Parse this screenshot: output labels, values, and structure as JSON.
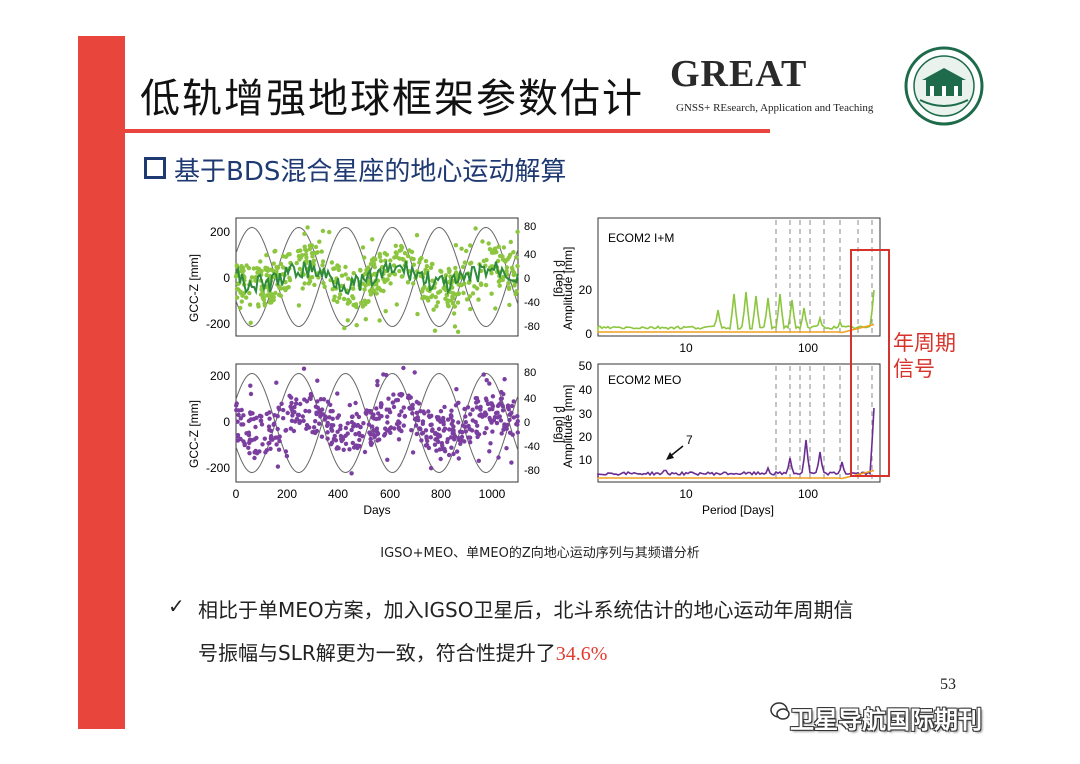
{
  "slide": {
    "title": "低轨增强地球框架参数估计",
    "subtitle": "基于BDS混合星座的地心运动解算",
    "logo_text": "GREAT",
    "logo_subtext": "GNSS+ REsearch, Application and Teaching",
    "page_number": "53",
    "watermark": "卫星导航国际期刊"
  },
  "figure": {
    "caption": "IGSO+MEO、单MEO的Z向地心运动序列与其频谱分析",
    "annotation_line1": "年周期",
    "annotation_line2": "信号",
    "arrow_label": "7"
  },
  "bullet": {
    "check": "✓",
    "line1": "相比于单MEO方案，加入IGSO卫星后，北斗系统估计的地心运动年周期信",
    "line2_prefix": "号振幅与SLR解更为一致，符合性提升了",
    "line2_value": "34.6%"
  },
  "chart_data": [
    {
      "type": "scatter",
      "panel": "top-left",
      "xlabel": "",
      "ylabel": "GCC-Z [mm]",
      "y2label": "β [deg]",
      "xlim": [
        0,
        1100
      ],
      "ylim": [
        -250,
        250
      ],
      "yticks": [
        -200,
        0,
        200
      ],
      "y2ticks": [
        -80,
        -40,
        0,
        40,
        80
      ],
      "colors": {
        "points": "#8cc63f",
        "line": "#2e8b3c",
        "beta": "#555555"
      }
    },
    {
      "type": "line",
      "panel": "top-right",
      "label": "ECOM2 I+M",
      "ylabel": "Amplitude [mm]",
      "xscale": "log",
      "xticks": [
        10,
        100
      ],
      "ylim": [
        0,
        30
      ],
      "yticks": [
        0,
        20
      ],
      "colors": {
        "series": "#8cc63f",
        "ref": "#f0a020"
      }
    },
    {
      "type": "scatter",
      "panel": "bottom-left",
      "xlabel": "Days",
      "ylabel": "GCC-Z [mm]",
      "y2label": "β [deg]",
      "xlim": [
        0,
        1100
      ],
      "xticks": [
        0,
        200,
        400,
        600,
        800,
        1000
      ],
      "ylim": [
        -250,
        250
      ],
      "yticks": [
        -200,
        0,
        200
      ],
      "y2ticks": [
        -80,
        -40,
        0,
        40,
        80
      ],
      "colors": {
        "points": "#7b3fa0",
        "beta": "#555555"
      }
    },
    {
      "type": "line",
      "panel": "bottom-right",
      "label": "ECOM2 MEO",
      "xlabel": "Period [Days]",
      "ylabel": "Amplitude [mm]",
      "xscale": "log",
      "xticks": [
        10,
        100
      ],
      "ylim": [
        0,
        50
      ],
      "yticks": [
        10,
        20,
        30,
        40,
        50
      ],
      "colors": {
        "series": "#6a2c91",
        "ref": "#f0a020"
      }
    }
  ]
}
